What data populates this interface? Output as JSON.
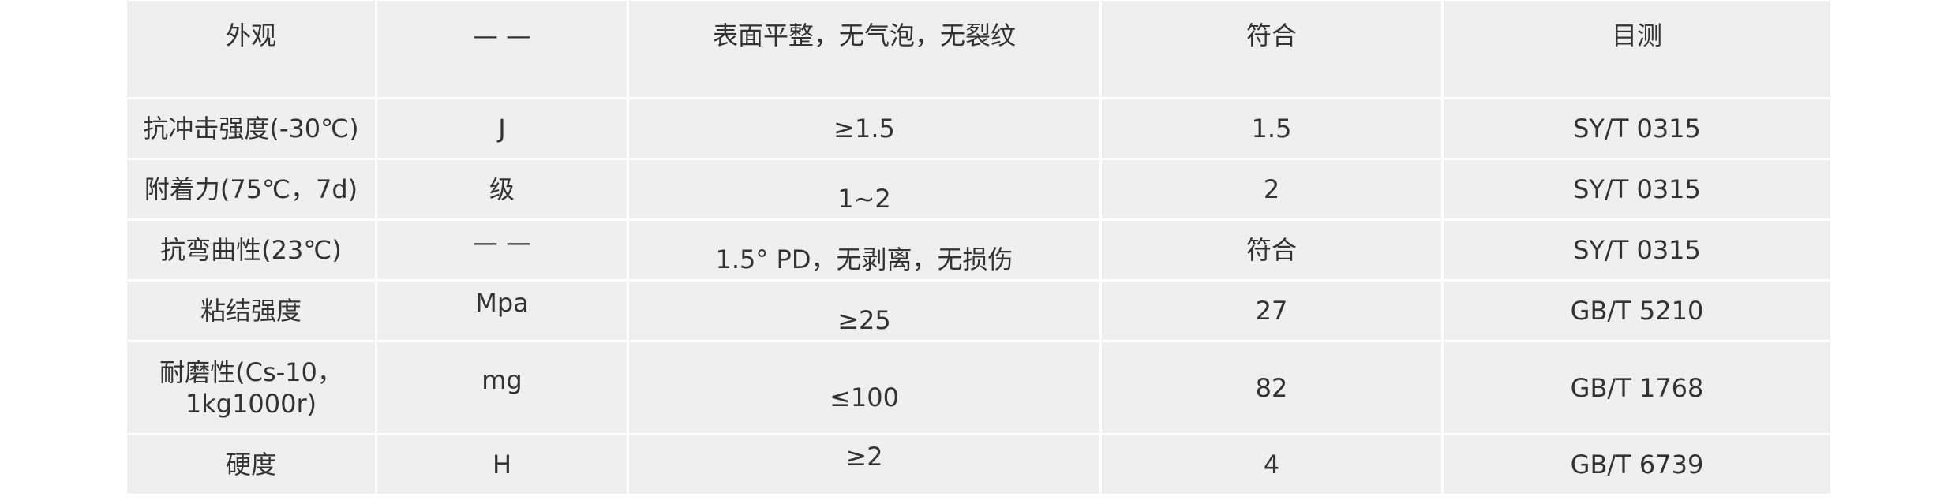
{
  "table": {
    "rows": [
      {
        "item": "外观",
        "unit": "— —",
        "requirement": "表面平整，无气泡，无裂纹",
        "result": "符合",
        "method": "目测"
      },
      {
        "item": "抗冲击强度(-30℃)",
        "unit": "J",
        "requirement": "≥1.5",
        "result": "1.5",
        "method": "SY/T 0315"
      },
      {
        "item": "附着力(75℃，7d)",
        "unit": "级",
        "requirement": "1~2",
        "result": "2",
        "method": "SY/T 0315"
      },
      {
        "item": "抗弯曲性(23℃)",
        "unit": "— —",
        "requirement": "1.5° PD，无剥离，无损伤",
        "result": "符合",
        "method": "SY/T 0315"
      },
      {
        "item": "粘结强度",
        "unit": "Mpa",
        "requirement": "≥25",
        "result": "27",
        "method": "GB/T 5210"
      },
      {
        "item": "耐磨性(Cs-10，1kg1000r)",
        "unit": "mg",
        "requirement": "≤100",
        "result": "82",
        "method": "GB/T 1768"
      },
      {
        "item": "硬度",
        "unit": "H",
        "requirement": "≥2",
        "result": "4",
        "method": "GB/T 6739"
      }
    ]
  },
  "colors": {
    "cell_bg": "#efefef",
    "border": "#ffffff",
    "text": "#333333"
  }
}
